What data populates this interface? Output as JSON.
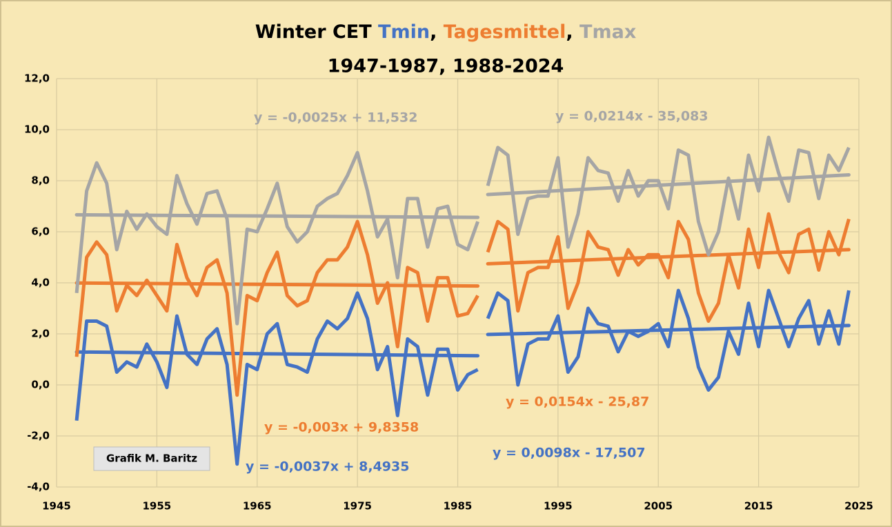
{
  "chart_data": {
    "type": "line",
    "title": "Winter CET",
    "title_separator": ", ",
    "subtitle": "1947-1987, 1988-2024",
    "annotation": "Grafik M. Baritz",
    "x": [
      [
        1947,
        1948,
        1949,
        1950,
        1951,
        1952,
        1953,
        1954,
        1955,
        1956,
        1957,
        1958,
        1959,
        1960,
        1961,
        1962,
        1963,
        1964,
        1965,
        1966,
        1967,
        1968,
        1969,
        1970,
        1971,
        1972,
        1973,
        1974,
        1975,
        1976,
        1977,
        1978,
        1979,
        1980,
        1981,
        1982,
        1983,
        1984,
        1985,
        1986,
        1987
      ],
      [
        1988,
        1989,
        1990,
        1991,
        1992,
        1993,
        1994,
        1995,
        1996,
        1997,
        1998,
        1999,
        2000,
        2001,
        2002,
        2003,
        2004,
        2005,
        2006,
        2007,
        2008,
        2009,
        2010,
        2011,
        2012,
        2013,
        2014,
        2015,
        2016,
        2017,
        2018,
        2019,
        2020,
        2021,
        2022,
        2023,
        2024
      ]
    ],
    "series": [
      {
        "name": "Tmin",
        "color": "#4472c4",
        "values": [
          [
            -1.4,
            2.5,
            2.5,
            2.3,
            0.5,
            0.9,
            0.7,
            1.6,
            0.9,
            -0.1,
            2.7,
            1.2,
            0.8,
            1.8,
            2.2,
            0.8,
            -3.1,
            0.8,
            0.6,
            2.0,
            2.4,
            0.8,
            0.7,
            0.5,
            1.8,
            2.5,
            2.2,
            2.6,
            3.6,
            2.6,
            0.6,
            1.5,
            -1.2,
            1.8,
            1.5,
            -0.4,
            1.4,
            1.4,
            -0.2,
            0.4,
            0.6
          ],
          [
            2.6,
            3.6,
            3.3,
            0.0,
            1.6,
            1.8,
            1.8,
            2.7,
            0.5,
            1.1,
            3.0,
            2.4,
            2.3,
            1.3,
            2.1,
            1.9,
            2.1,
            2.4,
            1.5,
            3.7,
            2.6,
            0.7,
            -0.2,
            0.3,
            2.1,
            1.2,
            3.2,
            1.5,
            3.7,
            2.6,
            1.5,
            2.6,
            3.3,
            1.6,
            2.9,
            1.6,
            3.7
          ]
        ],
        "trendlines": [
          {
            "label": "y = -0,0037x + 8,4935",
            "slope": -0.0037,
            "intercept": 8.4935
          },
          {
            "label": "y = 0,0098x - 17,507",
            "slope": 0.0098,
            "intercept": -17.507
          }
        ]
      },
      {
        "name": "Tagesmittel",
        "color": "#ed7d31",
        "values": [
          [
            1.1,
            5.0,
            5.6,
            5.1,
            2.9,
            3.9,
            3.5,
            4.1,
            3.5,
            2.9,
            5.5,
            4.2,
            3.5,
            4.6,
            4.9,
            3.6,
            -0.4,
            3.5,
            3.3,
            4.4,
            5.2,
            3.5,
            3.1,
            3.3,
            4.4,
            4.9,
            4.9,
            5.4,
            6.4,
            5.1,
            3.2,
            4.0,
            1.5,
            4.6,
            4.4,
            2.5,
            4.2,
            4.2,
            2.7,
            2.8,
            3.5
          ],
          [
            5.2,
            6.4,
            6.1,
            2.9,
            4.4,
            4.6,
            4.6,
            5.8,
            3.0,
            4.0,
            6.0,
            5.4,
            5.3,
            4.3,
            5.3,
            4.7,
            5.1,
            5.1,
            4.2,
            6.4,
            5.7,
            3.6,
            2.5,
            3.2,
            5.1,
            3.8,
            6.1,
            4.6,
            6.7,
            5.2,
            4.4,
            5.9,
            6.1,
            4.5,
            6.0,
            5.1,
            6.5
          ]
        ],
        "trendlines": [
          {
            "label": "y = -0,003x + 9,8358",
            "slope": -0.003,
            "intercept": 9.8358
          },
          {
            "label": "y = 0,0154x - 25,87",
            "slope": 0.0154,
            "intercept": -25.87
          }
        ]
      },
      {
        "name": "Tmax",
        "color": "#a5a5a5",
        "values": [
          [
            3.6,
            7.6,
            8.7,
            7.9,
            5.3,
            6.8,
            6.1,
            6.7,
            6.2,
            5.9,
            8.2,
            7.1,
            6.3,
            7.5,
            7.6,
            6.5,
            2.4,
            6.1,
            6.0,
            6.9,
            7.9,
            6.2,
            5.6,
            6.0,
            7.0,
            7.3,
            7.5,
            8.2,
            9.1,
            7.6,
            5.8,
            6.5,
            4.2,
            7.3,
            7.3,
            5.4,
            6.9,
            7.0,
            5.5,
            5.3,
            6.4
          ],
          [
            7.8,
            9.3,
            9.0,
            5.9,
            7.3,
            7.4,
            7.4,
            8.9,
            5.4,
            6.7,
            8.9,
            8.4,
            8.3,
            7.2,
            8.4,
            7.4,
            8.0,
            8.0,
            6.9,
            9.2,
            9.0,
            6.4,
            5.1,
            6.0,
            8.1,
            6.5,
            9.0,
            7.6,
            9.7,
            8.3,
            7.2,
            9.2,
            9.1,
            7.3,
            9.0,
            8.4,
            9.3
          ]
        ],
        "trendlines": [
          {
            "label": "y = -0,0025x + 11,532",
            "slope": -0.0025,
            "intercept": 11.532
          },
          {
            "label": "y = 0,0214x - 35,083",
            "slope": 0.0214,
            "intercept": -35.083
          }
        ]
      }
    ],
    "xlim": [
      1945,
      2025
    ],
    "xticks": [
      1945,
      1955,
      1965,
      1975,
      1985,
      1995,
      2005,
      2015,
      2025
    ],
    "ylim": [
      -4,
      12
    ],
    "yticks": [
      {
        "value": -4,
        "label": "-4,0"
      },
      {
        "value": -2,
        "label": "-2,0"
      },
      {
        "value": 0,
        "label": "0,0"
      },
      {
        "value": 2,
        "label": "2,0"
      },
      {
        "value": 4,
        "label": "4,0"
      },
      {
        "value": 6,
        "label": "6,0"
      },
      {
        "value": 8,
        "label": "8,0"
      },
      {
        "value": 10,
        "label": "10,0"
      },
      {
        "value": 12,
        "label": "12,0"
      }
    ],
    "grid": true
  }
}
